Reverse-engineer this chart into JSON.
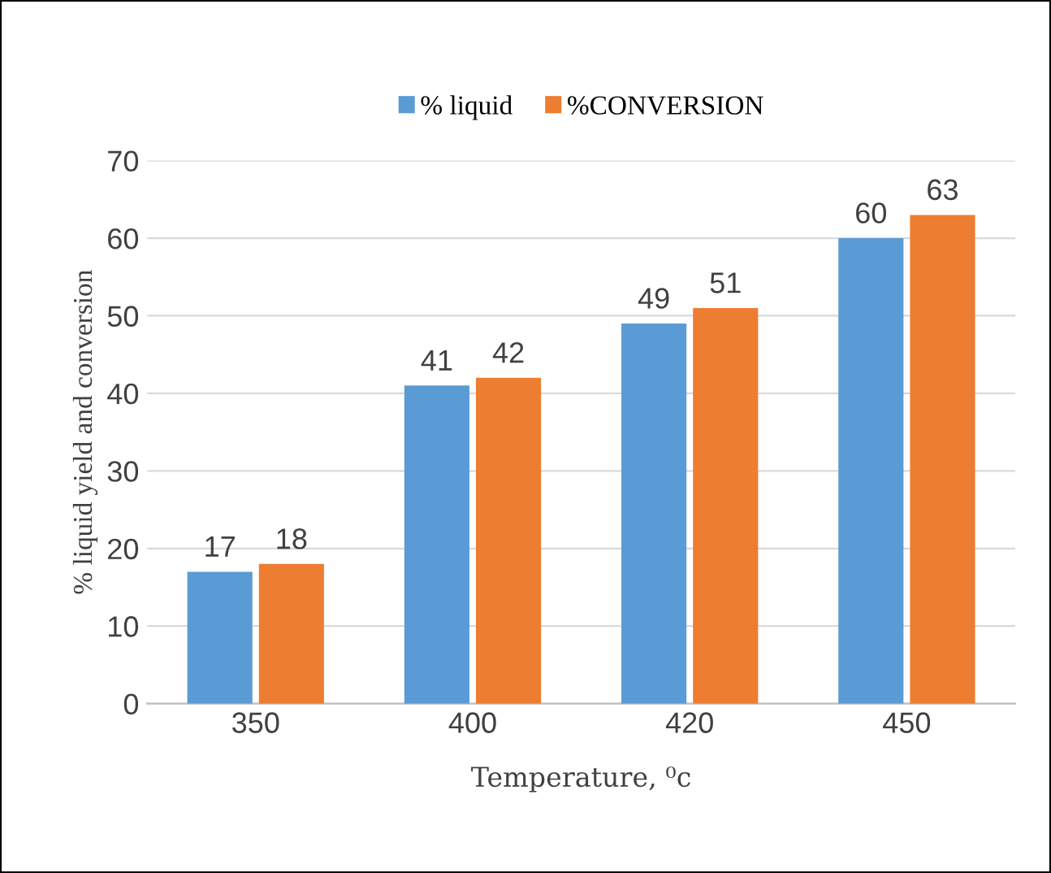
{
  "chart_data": {
    "type": "bar",
    "xlabel": "Temperature, ⁰c",
    "ylabel": "% liquid yield and conversion",
    "categories": [
      "350",
      "400",
      "420",
      "450"
    ],
    "series": [
      {
        "name": "% liquid",
        "color": "#5b9bd5",
        "values": [
          17,
          41,
          49,
          60
        ]
      },
      {
        "name": "%CONVERSION",
        "color": "#ed7d31",
        "values": [
          18,
          42,
          51,
          63
        ]
      }
    ],
    "ylim": [
      0,
      70
    ],
    "yticks": [
      0,
      10,
      20,
      30,
      40,
      50,
      60,
      70
    ],
    "grid": "y",
    "legend": "top",
    "data_labels": true
  }
}
